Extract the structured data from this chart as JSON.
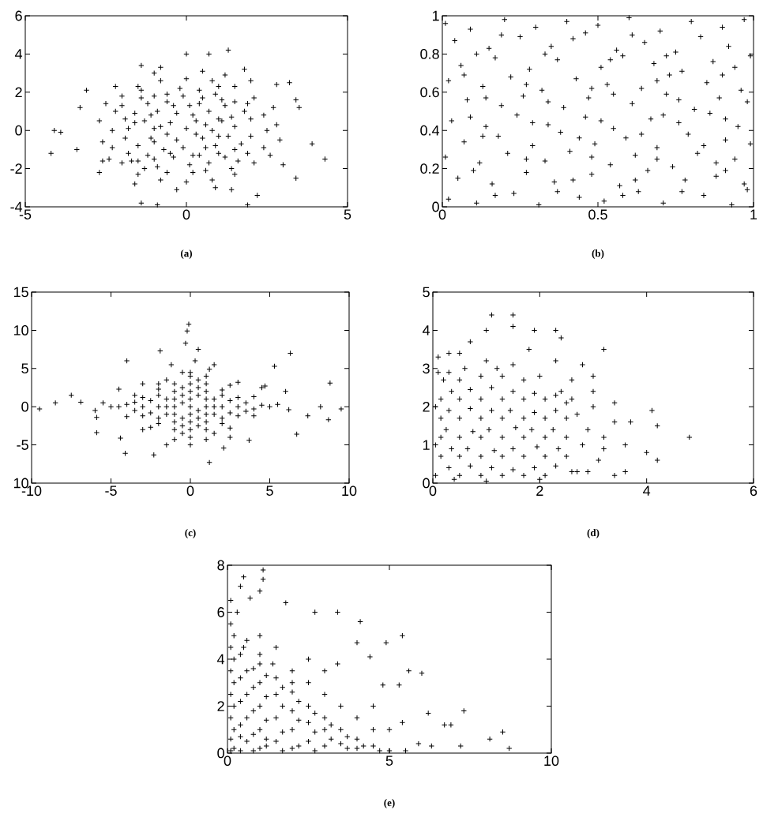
{
  "chart_data": [
    {
      "type": "scatter",
      "color": "#000000",
      "marker": "cross",
      "xlim": [
        -5,
        5
      ],
      "ylim": [
        -4,
        6
      ],
      "xticks": [
        -5,
        0,
        5
      ],
      "yticks": [
        -4,
        -2,
        0,
        2,
        4,
        6
      ],
      "annotations": [
        "(a)"
      ],
      "x": [
        -4.1,
        -3.9,
        -4.2,
        -3.4,
        -3.1,
        -3.3,
        3.9,
        4.3,
        3.5,
        3.4,
        3.2,
        2.8,
        1.3,
        0.7,
        0.0,
        -1.4,
        -0.8,
        -1.4,
        -0.9,
        1.9,
        2.2,
        1.4,
        3.4,
        3.0,
        1.8,
        -2.7,
        -2.6,
        -2.3,
        -2.2,
        -2.0,
        -1.5,
        -0.8,
        0,
        0.8,
        1.5,
        2.1,
        2.4,
        2.5,
        2.4,
        2.1,
        1.5,
        0.8,
        0,
        -0.8,
        -1.5,
        -2.0,
        -2.3,
        -2.7,
        -2.6,
        -2.5,
        -2.4,
        2.8,
        2.9,
        2.7,
        2.6,
        -1.0,
        0.5,
        1.2,
        -0.3,
        0.9,
        -1.6,
        2.0,
        -2.2,
        -1.7,
        -1.5,
        -1.8,
        -1.6,
        -1.4,
        -0.9,
        -0.7,
        -0.8,
        -0.9,
        -0.6,
        0.1,
        -0.1,
        0.0,
        0.2,
        -0.1,
        0.7,
        0.9,
        0.8,
        0.7,
        0.9,
        1.6,
        1.7,
        1.5,
        1.8,
        1.5,
        -1.2,
        -1.1,
        -1.3,
        -1.2,
        -0.4,
        -0.3,
        -0.5,
        -0.4,
        0.4,
        0.5,
        0.3,
        0.4,
        1.2,
        1.3,
        1.1,
        1.2,
        -1.9,
        -1.9,
        -2.0,
        -1.8,
        -1.3,
        -1.0,
        -1.0,
        -1.0,
        -1.1,
        -1.0,
        -0.6,
        -0.5,
        -0.6,
        -0.3,
        -0.6,
        -0.2,
        0.2,
        0.2,
        0.3,
        0.1,
        0.4,
        0.6,
        0.6,
        0.6,
        0.5,
        1.0,
        1.0,
        1.0,
        1.1,
        1.0,
        1.4,
        1.5,
        1.4,
        1.9,
        2.0,
        2.0,
        1.9,
        -1.5,
        -1.6,
        -1.4
      ],
      "values": [
        0,
        -0.1,
        -1.2,
        -1.0,
        2.1,
        1.2,
        -0.7,
        -1.5,
        1.2,
        1.6,
        2.5,
        2.4,
        4.2,
        4.0,
        4.0,
        3.4,
        3.3,
        -3.8,
        -3.9,
        -3.9,
        -3.4,
        -3.1,
        -2.5,
        -1.8,
        3.2,
        -2.2,
        -1.6,
        0,
        1,
        1.8,
        2.3,
        2.6,
        2.7,
        2.6,
        2.3,
        1.7,
        0.8,
        0,
        -0.9,
        -1.7,
        -2.3,
        -2.6,
        -2.7,
        -2.6,
        -2.3,
        -1.7,
        -0.9,
        0.5,
        -0.6,
        1.4,
        -1.5,
        0.3,
        -0.5,
        1.2,
        -1.3,
        3.0,
        3.1,
        2.9,
        -3.1,
        -3.0,
        -2.8,
        2.6,
        2.3,
        -1.6,
        -0.8,
        0.1,
        0.9,
        1.7,
        -1.9,
        -1.0,
        0.2,
        1.0,
        1.9,
        -1.8,
        -0.9,
        0.1,
        0.8,
        1.8,
        -1.7,
        -0.8,
        0.0,
        1.0,
        1.9,
        -1.6,
        -0.7,
        0.2,
        1.0,
        1.5,
        -1.3,
        -0.4,
        0.5,
        1.4,
        -1.4,
        -0.5,
        0.4,
        1.3,
        -1.3,
        -0.4,
        0.5,
        1.4,
        -1.4,
        -0.3,
        0.5,
        1.3,
        -0.4,
        0.6,
        1.3,
        -1.2,
        -2.0,
        -1.5,
        -0.6,
        0.1,
        0.8,
        1.8,
        -2.2,
        -1.2,
        -0.2,
        0.9,
        1.5,
        2.2,
        -2.2,
        -1.3,
        -0.2,
        1.3,
        2.1,
        -2.1,
        -0.9,
        0.3,
        1.7,
        -1.2,
        -0.3,
        0.6,
        1.6,
        2.3,
        -2.0,
        -1.0,
        0.7,
        -1.2,
        -0.3,
        0.6,
        1.4,
        -1.6,
        0.4,
        2.1
      ]
    },
    {
      "type": "scatter",
      "color": "#000000",
      "marker": "cross",
      "xlim": [
        0,
        1
      ],
      "ylim": [
        0,
        1
      ],
      "xticks": [
        0,
        0.5,
        1
      ],
      "yticks": [
        0,
        0.2,
        0.4,
        0.6,
        0.8,
        1
      ],
      "annotations": [
        "(b)"
      ],
      "x": [
        0.02,
        0.11,
        0.23,
        0.31,
        0.44,
        0.52,
        0.63,
        0.71,
        0.84,
        0.93,
        0.98,
        0.05,
        0.16,
        0.27,
        0.36,
        0.48,
        0.57,
        0.66,
        0.78,
        0.88,
        0.97,
        0.01,
        0.12,
        0.21,
        0.33,
        0.41,
        0.54,
        0.62,
        0.74,
        0.82,
        0.94,
        0.07,
        0.18,
        0.29,
        0.38,
        0.49,
        0.59,
        0.69,
        0.79,
        0.91,
        0.99,
        0.03,
        0.14,
        0.24,
        0.34,
        0.46,
        0.55,
        0.67,
        0.76,
        0.86,
        0.95,
        0.08,
        0.19,
        0.26,
        0.39,
        0.47,
        0.61,
        0.72,
        0.81,
        0.89,
        0.98,
        0.02,
        0.13,
        0.22,
        0.32,
        0.43,
        0.53,
        0.64,
        0.73,
        0.85,
        0.96,
        0.06,
        0.17,
        0.28,
        0.37,
        0.51,
        0.58,
        0.68,
        0.77,
        0.87,
        0.99,
        0.04,
        0.15,
        0.25,
        0.35,
        0.42,
        0.56,
        0.65,
        0.75,
        0.83,
        0.92,
        0.01,
        0.09,
        0.2,
        0.3,
        0.4,
        0.5,
        0.6,
        0.7,
        0.8,
        0.9,
        0.97,
        0.17,
        0.37,
        0.58,
        0.77,
        0.1,
        0.42,
        0.62,
        0.91,
        0.27,
        0.48,
        0.69,
        0.88,
        0.13,
        0.44,
        0.64,
        0.84,
        0.09,
        0.29,
        0.51,
        0.71,
        0.91,
        0.14,
        0.34,
        0.55,
        0.76,
        0.07,
        0.27,
        0.48,
        0.69,
        0.9,
        0.11,
        0.33,
        0.54,
        0.72,
        0.94,
        0.19,
        0.46,
        0.61
      ],
      "values": [
        0.04,
        0.02,
        0.07,
        0.01,
        0.05,
        0.03,
        0.08,
        0.02,
        0.06,
        0.01,
        0.09,
        0.15,
        0.12,
        0.18,
        0.13,
        0.17,
        0.11,
        0.19,
        0.14,
        0.16,
        0.12,
        0.26,
        0.23,
        0.28,
        0.24,
        0.29,
        0.22,
        0.27,
        0.21,
        0.28,
        0.25,
        0.34,
        0.37,
        0.32,
        0.39,
        0.33,
        0.36,
        0.31,
        0.38,
        0.35,
        0.33,
        0.45,
        0.42,
        0.48,
        0.43,
        0.47,
        0.41,
        0.46,
        0.44,
        0.49,
        0.42,
        0.56,
        0.53,
        0.58,
        0.52,
        0.57,
        0.54,
        0.59,
        0.51,
        0.57,
        0.55,
        0.66,
        0.63,
        0.68,
        0.61,
        0.67,
        0.64,
        0.62,
        0.69,
        0.65,
        0.61,
        0.74,
        0.78,
        0.72,
        0.77,
        0.73,
        0.79,
        0.75,
        0.71,
        0.76,
        0.79,
        0.87,
        0.83,
        0.89,
        0.84,
        0.88,
        0.82,
        0.86,
        0.81,
        0.89,
        0.84,
        0.96,
        0.93,
        0.98,
        0.94,
        0.97,
        0.95,
        0.99,
        0.92,
        0.97,
        0.94,
        0.98,
        0.06,
        0.08,
        0.06,
        0.08,
        0.19,
        0.14,
        0.14,
        0.19,
        0.25,
        0.26,
        0.25,
        0.23,
        0.37,
        0.36,
        0.38,
        0.32,
        0.47,
        0.44,
        0.45,
        0.48,
        0.46,
        0.57,
        0.55,
        0.59,
        0.56,
        0.69,
        0.64,
        0.62,
        0.66,
        0.69,
        0.8,
        0.8,
        0.77,
        0.79,
        0.73,
        0.9,
        0.91,
        0.9
      ]
    },
    {
      "type": "scatter",
      "color": "#000000",
      "marker": "cross",
      "xlim": [
        -10,
        10
      ],
      "ylim": [
        -10,
        15
      ],
      "xticks": [
        -10,
        -5,
        0,
        5,
        10
      ],
      "yticks": [
        {
          "value": -10,
          "label": "10"
        },
        -5,
        0,
        5,
        10,
        15
      ],
      "annotations": [
        "(c)"
      ],
      "x": [
        -0.1,
        -0.2,
        -0.3,
        -1.9,
        0.5,
        6.3,
        8.8,
        5.3,
        -9.5,
        -7.5,
        -8.5,
        -5.9,
        -4.1,
        -2.3,
        1.2,
        6.7,
        9.5,
        8.2,
        8.7,
        7.4,
        6.2,
        -4.0,
        1.2,
        4.7,
        -5.9,
        -6.9,
        -4.4,
        3.7,
        2.1,
        -5,
        -3.5,
        -2,
        -0.5,
        0,
        1,
        2.5,
        4,
        5,
        4,
        2.5,
        1,
        0,
        -1,
        -2.5,
        -4,
        -5.5,
        5.5,
        -3,
        -2,
        -1,
        1,
        2,
        3,
        0,
        0,
        0,
        0,
        0,
        0,
        -1.5,
        -1.5,
        1.5,
        1.5,
        -1,
        1,
        -1,
        1,
        -2.5,
        2.5,
        -2.5,
        2.5,
        0,
        -0.5,
        0.5,
        -4,
        4,
        -0.5,
        0.5,
        -3,
        3,
        -3,
        2.5,
        -1.5,
        1.5,
        -1.2,
        0.3,
        4.5,
        -4.5,
        6,
        -6,
        -4.5,
        -3.5,
        -3.5,
        -3,
        -3,
        -2,
        -2,
        -2,
        -2,
        -1.5,
        -1,
        -1,
        -1,
        -1,
        -0.5,
        -0.5,
        -0.5,
        -0.5,
        0.5,
        0.5,
        0.5,
        0.5,
        1,
        1,
        1,
        1,
        1.5,
        2,
        2,
        2,
        2,
        3,
        3,
        3.5,
        3.5,
        4.5,
        0,
        0,
        -1.5,
        1.5
      ],
      "values": [
        10.8,
        9.9,
        8.3,
        7.3,
        7.5,
        7.0,
        3.1,
        5.3,
        -0.3,
        1.5,
        0.5,
        -3.4,
        -6.1,
        -6.3,
        -7.3,
        -3.6,
        -0.3,
        0.0,
        -1.7,
        -1.2,
        -0.4,
        6.0,
        4.9,
        2.7,
        -1.4,
        0.6,
        -4.1,
        -4.4,
        -5.4,
        0,
        1.5,
        3,
        4.5,
        4.5,
        4,
        2.8,
        1.3,
        0,
        -1.2,
        -2.8,
        -4.3,
        -5,
        -4.3,
        -2.7,
        -1.3,
        0.5,
        0.3,
        0,
        0,
        0,
        0,
        0,
        0,
        2,
        -2,
        1,
        -1,
        3,
        -3,
        1,
        -1,
        1,
        -1,
        2,
        2,
        -2,
        -2,
        0.8,
        -0.8,
        -0.8,
        0.8,
        0,
        0.5,
        -0.5,
        0.3,
        -0.3,
        -3.5,
        3.5,
        3,
        3.2,
        -3,
        -4,
        -5,
        5.5,
        5.5,
        6,
        2.5,
        2.3,
        2,
        -0.5,
        0,
        -0.5,
        0.6,
        1.2,
        -1.2,
        1.5,
        -1.5,
        2.3,
        -2.2,
        0,
        1,
        -1,
        3,
        -3,
        -1.5,
        1.5,
        2.5,
        -2.5,
        1.5,
        -1.5,
        2.5,
        -2.5,
        1,
        -1,
        3,
        -3,
        0,
        1.5,
        -1.5,
        2.2,
        -2.2,
        1.2,
        -1.2,
        0.5,
        -0.6,
        0.2,
        4,
        -4,
        3.5,
        -3.5
      ]
    },
    {
      "type": "scatter",
      "color": "#000000",
      "marker": "cross",
      "xlim": [
        0,
        6
      ],
      "ylim": [
        0,
        5
      ],
      "xticks": [
        0,
        2,
        4,
        6
      ],
      "yticks": [
        0,
        1,
        2,
        3,
        4,
        5
      ],
      "annotations": [
        "(d)"
      ],
      "x": [
        4.8,
        4.1,
        4.2,
        4.2,
        4.0,
        3.7,
        3.2,
        2.8,
        3.0,
        3.4,
        3.4,
        3.6,
        1.1,
        1.5,
        1.5,
        1.0,
        1.9,
        2.3,
        2.4,
        0.3,
        0.1,
        0.7,
        3.6,
        3.0,
        2.6,
        0.05,
        0.05,
        0.05,
        0.2,
        0.6,
        1.0,
        1.5,
        2.0,
        2.4,
        2.7,
        2.8,
        2.7,
        2.0,
        1.0,
        0.4,
        2.9,
        3.1,
        3.0,
        3.2,
        0.3,
        0.35,
        0.25,
        0.3,
        0.35,
        0.7,
        0.65,
        0.75,
        0.7,
        0.7,
        1.1,
        1.15,
        1.05,
        1.1,
        1.1,
        1.5,
        1.5,
        1.55,
        1.45,
        1.5,
        1.9,
        1.95,
        1.85,
        1.9,
        1.9,
        2.3,
        2.35,
        2.25,
        2.3,
        2.3,
        0.5,
        1.8,
        2.3,
        2.6,
        2.9,
        3.2,
        3.4,
        0.1,
        0.15,
        0.15,
        0.15,
        0.15,
        0.5,
        0.5,
        0.5,
        0.5,
        0.5,
        0.5,
        0.9,
        0.9,
        0.9,
        0.9,
        0.9,
        0.9,
        1.3,
        1.3,
        1.3,
        1.3,
        1.3,
        1.3,
        1.7,
        1.7,
        1.7,
        1.7,
        1.7,
        1.7,
        2.1,
        2.1,
        2.1,
        2.1,
        2.1,
        2.5,
        2.5,
        2.5,
        2.5,
        1.2,
        0.3,
        2.6
      ],
      "values": [
        1.2,
        1.9,
        1.5,
        0.6,
        0.8,
        1.6,
        3.5,
        3.1,
        2.8,
        2.1,
        0.2,
        0.3,
        4.4,
        4.4,
        4.1,
        4.0,
        4.0,
        4.0,
        3.8,
        3.4,
        3.3,
        3.7,
        1.0,
        2.4,
        2.7,
        0.2,
        1,
        2,
        2.7,
        3.0,
        3.2,
        3.1,
        2.8,
        2.4,
        1.8,
        1.0,
        0.3,
        0.1,
        0.05,
        0.1,
        1.4,
        0.6,
        2.0,
        1.2,
        0.4,
        0.9,
        1.4,
        1.9,
        2.4,
        0.45,
        0.9,
        1.35,
        1.95,
        2.45,
        0.4,
        0.85,
        1.4,
        1.9,
        2.5,
        0.35,
        0.9,
        1.45,
        1.9,
        2.4,
        0.4,
        0.95,
        1.4,
        1.85,
        2.35,
        0.45,
        0.9,
        1.4,
        1.9,
        2.3,
        3.4,
        3.5,
        3.2,
        2.2,
        0.3,
        0.9,
        1.6,
        2.9,
        0.7,
        1.2,
        1.7,
        2.2,
        0.2,
        0.7,
        1.2,
        1.7,
        2.2,
        2.7,
        0.2,
        0.7,
        1.2,
        1.7,
        2.2,
        2.8,
        0.2,
        0.7,
        1.2,
        1.7,
        2.2,
        2.8,
        0.2,
        0.7,
        1.2,
        1.7,
        2.2,
        2.7,
        0.2,
        0.7,
        1.2,
        1.7,
        2.2,
        0.7,
        1.2,
        1.7,
        2.1,
        3.0,
        2.9,
        0.3
      ]
    },
    {
      "type": "scatter",
      "color": "#000000",
      "marker": "cross",
      "xlim": [
        0,
        10
      ],
      "ylim": [
        0,
        8
      ],
      "xticks": [
        0,
        5,
        10
      ],
      "yticks": [
        0,
        2,
        4,
        6,
        8
      ],
      "annotations": [
        "(e)"
      ],
      "x": [
        1.1,
        0.5,
        0.4,
        1.1,
        0.7,
        1.0,
        0.1,
        1.8,
        2.7,
        3.4,
        4.1,
        5.4,
        4.9,
        4.4,
        5.6,
        6.0,
        4.8,
        6.2,
        7.3,
        6.7,
        6.9,
        8.1,
        8.5,
        8.7,
        7.2,
        6.3,
        5.9,
        5.3,
        5.4,
        3.4,
        4.0,
        0.1,
        0.5,
        1,
        1.5,
        2,
        2.5,
        3,
        3.5,
        4,
        4.5,
        5,
        5.5,
        0.2,
        0.2,
        0.2,
        0.2,
        0.2,
        0.6,
        0.6,
        0.6,
        0.6,
        1,
        1,
        1,
        1,
        1.5,
        1.5,
        1.5,
        2,
        2,
        2,
        2.5,
        2.5,
        3,
        3,
        3.5,
        4,
        0.1,
        0.4,
        1.2,
        2,
        2.5,
        3,
        3.5,
        4,
        4.5,
        1.5,
        1,
        2.5,
        0.3,
        3,
        4.5,
        5,
        0.1,
        0.1,
        0.1,
        0.1,
        0.1,
        0.4,
        0.4,
        0.4,
        0.4,
        0.4,
        0.8,
        0.8,
        0.8,
        0.8,
        0.8,
        1.2,
        1.2,
        1.2,
        1.2,
        1.7,
        1.7,
        1.7,
        1.7,
        2.2,
        2.2,
        2.2,
        2.7,
        2.7,
        2.7,
        3.2,
        3.2,
        3.7,
        3.7,
        4.2,
        4.7,
        1.0,
        0.6,
        0.2,
        1.4,
        2.0
      ],
      "values": [
        7.8,
        7.5,
        7.1,
        7.4,
        6.6,
        6.9,
        6.5,
        6.4,
        6.0,
        6.0,
        5.6,
        5.0,
        4.7,
        4.1,
        3.5,
        3.4,
        2.9,
        1.7,
        1.8,
        1.2,
        1.2,
        0.6,
        0.9,
        0.2,
        0.3,
        0.3,
        0.4,
        2.9,
        1.3,
        3.8,
        4.7,
        5.5,
        4.5,
        3.8,
        3.2,
        2.6,
        2.0,
        1.5,
        1.0,
        0.6,
        0.3,
        0.1,
        0.1,
        0.2,
        1,
        2,
        3,
        4,
        0.5,
        1.5,
        2.5,
        3.5,
        0.2,
        1,
        2,
        3,
        0.5,
        1.5,
        2.5,
        0.2,
        1,
        1.8,
        0.5,
        1.3,
        0.3,
        1,
        0.4,
        0.2,
        0.1,
        0.1,
        0.6,
        3.5,
        3,
        2.5,
        2,
        1.5,
        1,
        4.5,
        5,
        4,
        6,
        3.5,
        2,
        1,
        0.6,
        1.5,
        2.5,
        3.5,
        4.5,
        0.7,
        1.2,
        2.2,
        3.2,
        4.2,
        0.1,
        0.8,
        1.8,
        2.8,
        3.6,
        0.3,
        1.4,
        2.4,
        3.3,
        0.1,
        0.9,
        2.0,
        2.8,
        0.3,
        1.4,
        2.2,
        0.1,
        0.9,
        1.7,
        0.6,
        1.2,
        0.2,
        0.7,
        0.3,
        0.1,
        4.2,
        4.8,
        5.0,
        3.8,
        3.0
      ]
    }
  ]
}
